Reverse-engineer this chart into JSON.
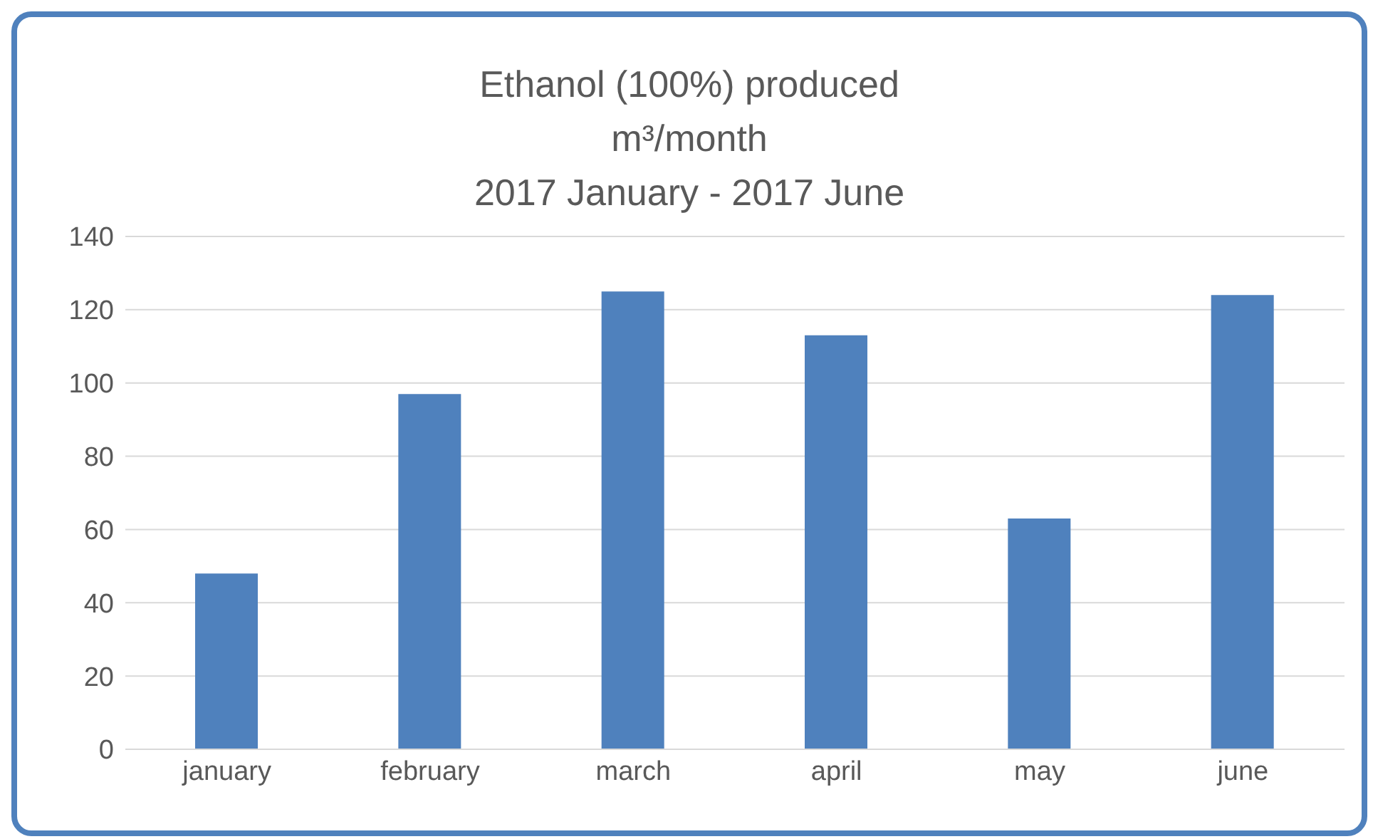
{
  "chart_data": {
    "type": "bar",
    "title": "Ethanol (100%) produced",
    "subtitle": "m³/month\n2017 January - 2017 June",
    "categories": [
      "january",
      "february",
      "march",
      "april",
      "may",
      "june"
    ],
    "values": [
      48,
      97,
      125,
      113,
      63,
      124
    ],
    "color": "#4f81bd",
    "ylim": [
      0,
      140
    ],
    "yticks": [
      0,
      20,
      40,
      60,
      80,
      100,
      120,
      140
    ],
    "grid": "y"
  }
}
